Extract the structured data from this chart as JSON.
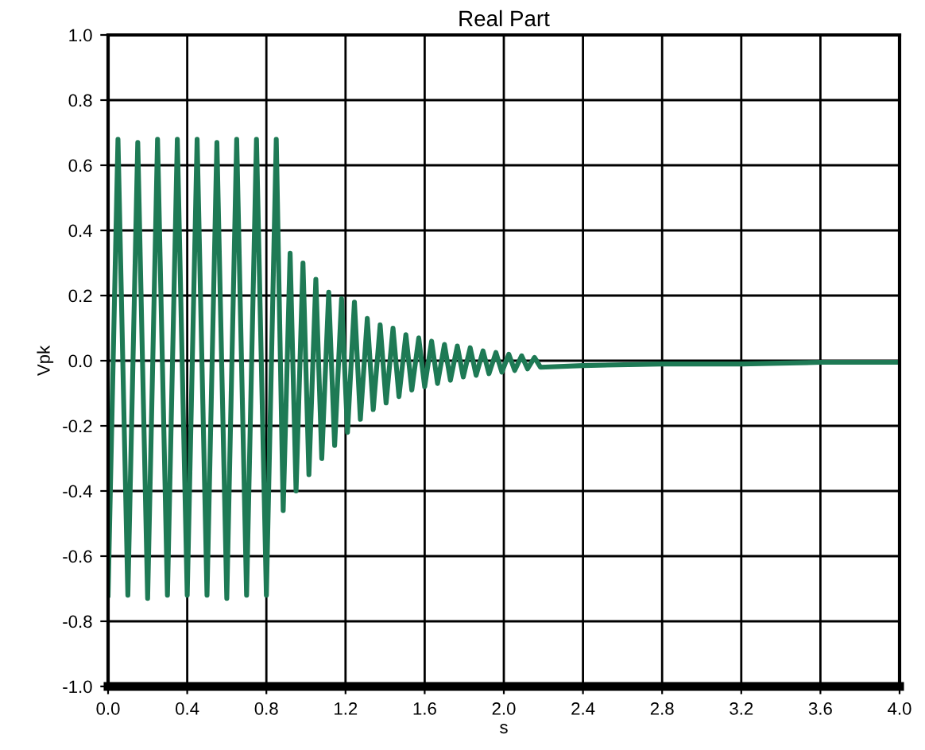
{
  "chart_data": {
    "type": "line",
    "title": "Real Part",
    "xlabel": "s",
    "ylabel": "Vpk",
    "series": [
      {
        "color": "#1e7a55",
        "x": [
          0.0,
          0.05,
          0.1,
          0.15,
          0.2,
          0.25,
          0.3,
          0.35,
          0.4,
          0.45,
          0.5,
          0.55,
          0.6,
          0.65,
          0.7,
          0.75,
          0.8,
          0.85,
          0.885,
          0.92,
          0.95,
          0.985,
          1.015,
          1.05,
          1.08,
          1.115,
          1.145,
          1.18,
          1.21,
          1.245,
          1.275,
          1.31,
          1.34,
          1.375,
          1.405,
          1.44,
          1.47,
          1.505,
          1.535,
          1.57,
          1.6,
          1.635,
          1.665,
          1.7,
          1.73,
          1.765,
          1.795,
          1.83,
          1.86,
          1.895,
          1.925,
          1.96,
          1.99,
          2.025,
          2.055,
          2.09,
          2.12,
          2.155,
          2.185,
          2.4,
          2.8,
          3.2,
          3.6,
          4.0
        ],
        "values": [
          -0.72,
          0.68,
          -0.72,
          0.67,
          -0.73,
          0.68,
          -0.72,
          0.68,
          -0.72,
          0.68,
          -0.72,
          0.67,
          -0.73,
          0.68,
          -0.72,
          0.68,
          -0.72,
          0.68,
          -0.46,
          0.33,
          -0.4,
          0.3,
          -0.35,
          0.25,
          -0.3,
          0.21,
          -0.26,
          0.19,
          -0.22,
          0.18,
          -0.18,
          0.13,
          -0.15,
          0.11,
          -0.13,
          0.1,
          -0.11,
          0.08,
          -0.09,
          0.07,
          -0.08,
          0.06,
          -0.07,
          0.05,
          -0.06,
          0.045,
          -0.05,
          0.04,
          -0.045,
          0.03,
          -0.04,
          0.025,
          -0.035,
          0.02,
          -0.03,
          0.015,
          -0.025,
          0.01,
          -0.02,
          -0.015,
          -0.01,
          -0.01,
          -0.005,
          -0.005
        ]
      }
    ],
    "xlim": [
      0.0,
      4.0
    ],
    "xticks": [
      {
        "value": 0,
        "label": "0.0"
      },
      0.4,
      0.8,
      1.2,
      1.6,
      {
        "value": 2,
        "label": "2.0"
      },
      2.4,
      2.8,
      3.2,
      3.6,
      {
        "value": 4,
        "label": "4.0"
      }
    ],
    "ylim": [
      -1.0,
      1.0
    ],
    "yticks": [
      {
        "value": -1,
        "label": "-1.0"
      },
      -0.8,
      -0.6,
      -0.4,
      -0.2,
      {
        "value": 0,
        "label": "0.0"
      },
      0.2,
      0.4,
      0.6,
      0.8,
      {
        "value": 1,
        "label": "1.0"
      }
    ],
    "grid": true
  }
}
